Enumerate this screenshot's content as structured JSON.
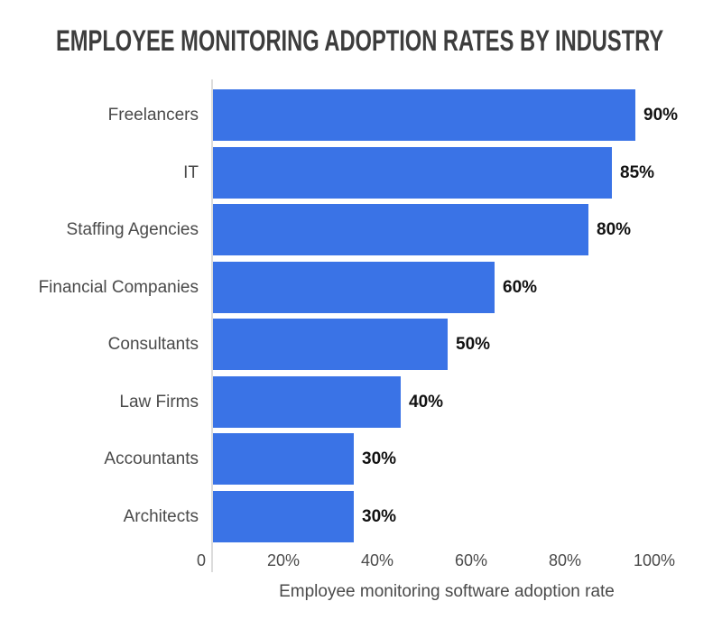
{
  "colors": {
    "background": "#ffffff",
    "bar": "#3a73e6",
    "title_text": "#3d3d3d",
    "category_text": "#4a4a4a",
    "value_text": "#121212",
    "tick_text": "#4a4a4a",
    "axis_line": "#dcdcdc"
  },
  "chart_data": {
    "type": "bar",
    "orientation": "horizontal",
    "title": "EMPLOYEE MONITORING ADOPTION RATES BY INDUSTRY",
    "categories": [
      "Freelancers",
      "IT",
      "Staffing Agencies",
      "Financial Companies",
      "Consultants",
      "Law Firms",
      "Accountants",
      "Architects"
    ],
    "values": [
      90,
      85,
      80,
      60,
      50,
      40,
      30,
      30
    ],
    "value_labels": [
      "90%",
      "85%",
      "80%",
      "60%",
      "50%",
      "40%",
      "30%",
      "30%"
    ],
    "x_ticks": [
      {
        "value": 0,
        "label": "0"
      },
      {
        "value": 20,
        "label": "20%"
      },
      {
        "value": 40,
        "label": "40%"
      },
      {
        "value": 60,
        "label": "60%"
      },
      {
        "value": 80,
        "label": "80%"
      },
      {
        "value": 100,
        "label": "100%"
      }
    ],
    "xlabel": "Employee monitoring software adoption rate",
    "ylabel": "",
    "xlim": [
      0,
      100
    ],
    "grid": false,
    "legend": false
  }
}
